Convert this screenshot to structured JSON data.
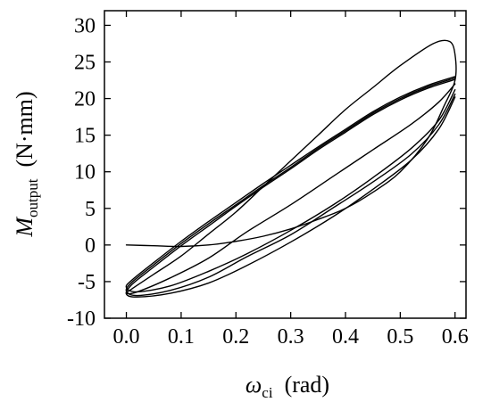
{
  "chart_data": {
    "type": "line",
    "title": "",
    "xlabel": {
      "symbol": "ω",
      "subscript": "ci",
      "unit": "(rad)"
    },
    "ylabel": {
      "symbol": "M",
      "subscript": "output",
      "unit": "(N·mm)"
    },
    "xlim": [
      -0.04,
      0.62
    ],
    "ylim": [
      -10,
      32
    ],
    "xticks": [
      0.0,
      0.1,
      0.2,
      0.3,
      0.4,
      0.5,
      0.6
    ],
    "xtick_labels": [
      "0.0",
      "0.1",
      "0.2",
      "0.3",
      "0.4",
      "0.5",
      "0.6"
    ],
    "yticks": [
      -10,
      -5,
      0,
      5,
      10,
      15,
      20,
      25,
      30
    ],
    "ytick_labels": [
      "-10",
      "-5",
      "0",
      "5",
      "10",
      "15",
      "20",
      "25",
      "30"
    ],
    "grid": false,
    "legend": "none",
    "series": [
      {
        "x": [
          0.0,
          0.05,
          0.1,
          0.15,
          0.2,
          0.25,
          0.3,
          0.35,
          0.4,
          0.45,
          0.5,
          0.55,
          0.58,
          0.6,
          0.6,
          0.59,
          0.56,
          0.5,
          0.45,
          0.4,
          0.35,
          0.3,
          0.25,
          0.2,
          0.15,
          0.1,
          0.05,
          0.01,
          0.0,
          0.02,
          0.08,
          0.15,
          0.22,
          0.3,
          0.38,
          0.45,
          0.52,
          0.57,
          0.6
        ],
        "y": [
          0,
          -0.1,
          -0.2,
          0.0,
          0.5,
          1.2,
          2.2,
          3.5,
          5.0,
          7.2,
          10.0,
          14.5,
          19.0,
          22.5,
          26.0,
          27.8,
          27.5,
          24.5,
          21.5,
          18.5,
          15.0,
          11.5,
          8.0,
          4.5,
          1.5,
          -1.5,
          -4.0,
          -6.0,
          -6.6,
          -6.4,
          -4.5,
          -1.8,
          1.8,
          5.5,
          9.5,
          13.0,
          16.5,
          19.5,
          22.0
        ]
      },
      {
        "x": [
          0.6,
          0.55,
          0.5,
          0.45,
          0.4,
          0.35,
          0.3,
          0.25,
          0.2,
          0.15,
          0.1,
          0.05,
          0.01,
          0.0,
          0.02,
          0.08,
          0.15,
          0.22,
          0.3,
          0.38,
          0.45,
          0.52,
          0.57,
          0.6
        ],
        "y": [
          23.0,
          21.8,
          20.2,
          18.2,
          15.8,
          13.4,
          10.9,
          8.4,
          5.8,
          3.2,
          0.5,
          -2.4,
          -4.8,
          -5.8,
          -6.4,
          -5.6,
          -3.6,
          -1.2,
          2.0,
          5.6,
          9.2,
          13.2,
          17.0,
          21.2
        ]
      },
      {
        "x": [
          0.6,
          0.55,
          0.5,
          0.45,
          0.4,
          0.35,
          0.3,
          0.25,
          0.2,
          0.15,
          0.1,
          0.05,
          0.01,
          0.0,
          0.02,
          0.08,
          0.15,
          0.22,
          0.3,
          0.38,
          0.45,
          0.52,
          0.57,
          0.6
        ],
        "y": [
          22.8,
          21.6,
          20.0,
          18.0,
          15.6,
          13.2,
          10.6,
          8.1,
          5.5,
          2.9,
          0.2,
          -2.7,
          -5.1,
          -6.3,
          -6.9,
          -6.2,
          -4.4,
          -1.6,
          1.4,
          5.2,
          8.6,
          12.4,
          16.4,
          20.6
        ]
      },
      {
        "x": [
          0.6,
          0.55,
          0.5,
          0.45,
          0.4,
          0.35,
          0.3,
          0.25,
          0.2,
          0.15,
          0.1,
          0.05,
          0.01,
          0.0,
          0.02,
          0.08,
          0.15,
          0.22,
          0.3,
          0.38,
          0.45,
          0.52,
          0.57,
          0.6
        ],
        "y": [
          22.6,
          21.4,
          19.8,
          17.8,
          15.4,
          13.0,
          10.4,
          7.9,
          5.3,
          2.6,
          -0.1,
          -3.0,
          -5.4,
          -6.7,
          -7.1,
          -6.6,
          -5.2,
          -2.8,
          0.4,
          4.0,
          7.6,
          11.6,
          15.8,
          20.2
        ]
      }
    ]
  }
}
